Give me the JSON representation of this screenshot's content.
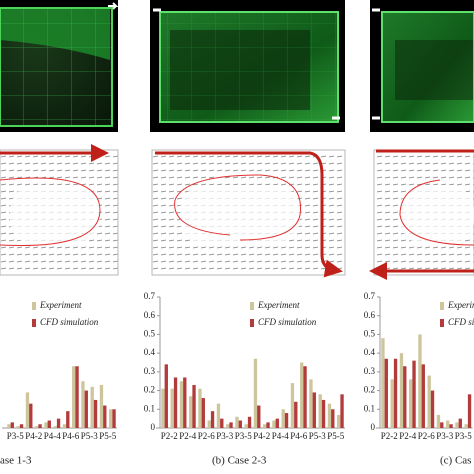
{
  "chart_data": [
    {
      "type": "bar",
      "categories": [
        "P3-5",
        null,
        "P4-2",
        null,
        "P4-4",
        null,
        "P4-6",
        null,
        "P5-3",
        null,
        "P5-5",
        null
      ],
      "series": [
        {
          "name": "Experiment",
          "color": "#cdc59c",
          "values": [
            0.02,
            0.01,
            0.19,
            0.01,
            0.03,
            0.01,
            0.02,
            0.33,
            0.25,
            0.22,
            0.23,
            0.1
          ]
        },
        {
          "name": "CFD simulation",
          "color": "#b23b3b",
          "values": [
            0.03,
            0.02,
            0.13,
            0.02,
            0.04,
            0.05,
            0.09,
            0.33,
            0.2,
            0.15,
            0.12,
            0.1
          ]
        }
      ],
      "ylim": [
        0,
        0.7
      ],
      "caption": "ase 1-3"
    },
    {
      "type": "bar",
      "categories": [
        "P2-2",
        null,
        "P2-4",
        null,
        "P2-6",
        null,
        "P3-3",
        null,
        "P3-5",
        null,
        "P4-2",
        null,
        "P4-4",
        null,
        "P4-6",
        null,
        "P5-3",
        null,
        "P5-5",
        null
      ],
      "series": [
        {
          "name": "Experiment",
          "color": "#cdc59c",
          "values": [
            0.21,
            0.21,
            0.25,
            0.17,
            0.21,
            0.04,
            0.13,
            0.02,
            0.06,
            0.02,
            0.37,
            0.02,
            0.04,
            0.1,
            0.24,
            0.35,
            0.26,
            0.18,
            0.13,
            0.07
          ]
        },
        {
          "name": "CFD simulation",
          "color": "#b23b3b",
          "values": [
            0.34,
            0.27,
            0.27,
            0.23,
            0.16,
            0.09,
            0.05,
            0.03,
            0.04,
            0.06,
            0.12,
            0.03,
            0.05,
            0.08,
            0.14,
            0.33,
            0.19,
            0.15,
            0.1,
            0.18
          ]
        }
      ],
      "ylim": [
        0,
        0.7
      ],
      "yticks": [
        0,
        0.1,
        0.2,
        0.3,
        0.4,
        0.5,
        0.6,
        0.7
      ],
      "caption": "(b) Case 2-3"
    },
    {
      "type": "bar",
      "categories": [
        "P2-2",
        null,
        "P2-4",
        null,
        "P2-6",
        null,
        "P3-3",
        null,
        "P3-5",
        null
      ],
      "series": [
        {
          "name": "Experiment",
          "color": "#cdc59c",
          "values": [
            0.48,
            0.26,
            0.4,
            0.26,
            0.5,
            0.28,
            0.07,
            0.04,
            0.03,
            0.02
          ]
        },
        {
          "name": "CFD simulation",
          "color": "#b23b3b",
          "values": [
            0.37,
            0.37,
            0.33,
            0.36,
            0.34,
            0.2,
            0.03,
            0.02,
            0.05,
            0.18
          ]
        }
      ],
      "ylim": [
        0,
        0.7
      ],
      "yticks": [
        0,
        0.1,
        0.2,
        0.3,
        0.4,
        0.5,
        0.6,
        0.7
      ],
      "caption": "(c) Cas"
    }
  ]
}
